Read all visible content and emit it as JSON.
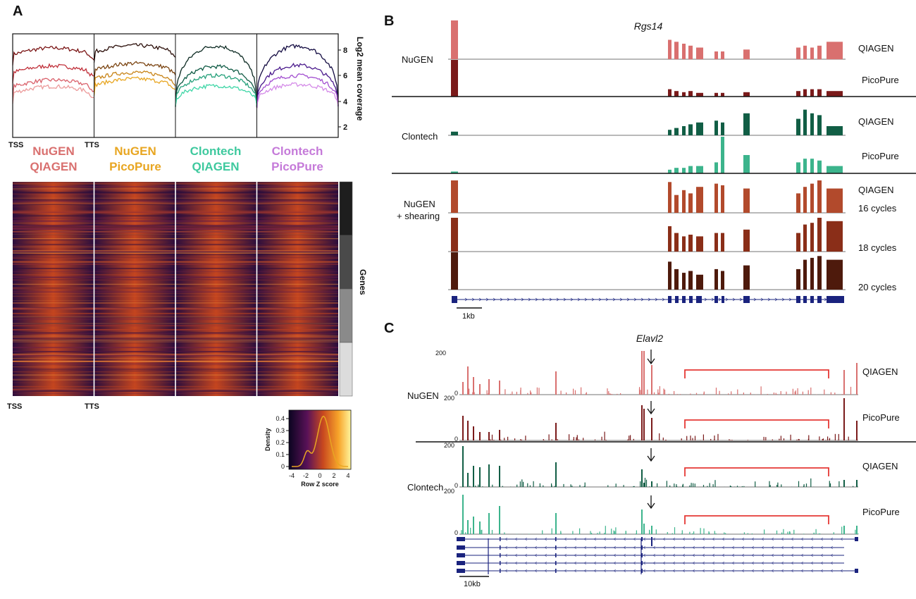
{
  "colors": {
    "nugen_qiagen": "#d9706f",
    "nugen_picopure": "#e8a622",
    "clontech_qiagen": "#3ec99e",
    "clontech_picopure": "#c57ad9",
    "track_nugen_qiagen": "#d9706f",
    "track_nugen_picopure": "#7a1a1a",
    "track_clontech_qiagen": "#115e45",
    "track_clontech_picopure": "#3cb48c",
    "track_shear16": "#b24a2c",
    "track_shear18": "#8a2e18",
    "track_shear20": "#4e1a0c",
    "gene_model": "#1a237e",
    "bracket": "#e53935",
    "heat_low": "#1a0a3c",
    "heat_mid": "#c8481f",
    "heat_high": "#fde68a"
  },
  "panelA": {
    "label": "A",
    "ylabel": "Log2 mean coverage",
    "yticks": [
      "8",
      "6",
      "4",
      "2"
    ],
    "tss": "TSS",
    "tts": "TTS",
    "samples": [
      {
        "line1": "NuGEN",
        "line2": "QIAGEN"
      },
      {
        "line1": "NuGEN",
        "line2": "PicoPure"
      },
      {
        "line1": "Clontech",
        "line2": "QIAGEN"
      },
      {
        "line1": "Clontech",
        "line2": "PicoPure"
      }
    ],
    "genes_label": "Genes",
    "heat_tss": "TSS",
    "heat_tts": "TTS",
    "legend": {
      "ylabel": "Density",
      "xlabel": "Row Z score",
      "xticks": [
        "-4",
        "-2",
        "0",
        "2",
        "4"
      ],
      "yticks": [
        "0.4",
        "0.3",
        "0.2",
        "0.1",
        "0"
      ]
    }
  },
  "panelB": {
    "label": "B",
    "gene": "Rgs14",
    "groups": [
      {
        "name": "NuGEN",
        "tracks": [
          "QIAGEN",
          "PicoPure"
        ]
      },
      {
        "name": "Clontech",
        "tracks": [
          "QIAGEN",
          "PicoPure"
        ]
      },
      {
        "name": "NuGEN",
        "name2": "+ shearing",
        "tracks": [
          "QIAGEN",
          "16 cycles",
          "18 cycles",
          "20 cycles"
        ]
      }
    ],
    "scalebar": "1kb"
  },
  "panelC": {
    "label": "C",
    "gene": "Elavl2",
    "group1": "NuGEN",
    "group2": "Clontech",
    "tracks": [
      "QIAGEN",
      "PicoPure",
      "QIAGEN",
      "PicoPure"
    ],
    "ymax": "200",
    "ymin": "0",
    "scalebar": "10kb"
  }
}
